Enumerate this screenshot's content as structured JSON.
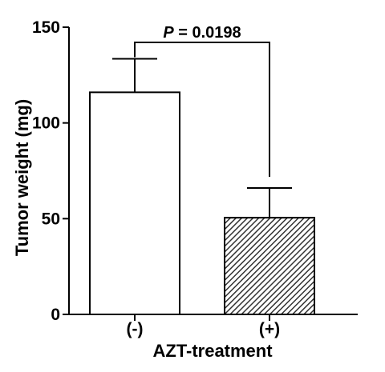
{
  "chart_data": {
    "type": "bar",
    "categories": [
      "(-)",
      "(+)"
    ],
    "values": [
      116,
      50.5
    ],
    "error_upper": [
      133.5,
      66
    ],
    "bar_fills": [
      "#ffffff",
      "hatched"
    ],
    "xlabel": "AZT-treatment",
    "ylabel": "Tumor weight (mg)",
    "ylim": [
      0,
      150
    ],
    "yticks": [
      0,
      50,
      100,
      150
    ],
    "ytick_labels": [
      "0",
      "50",
      "100",
      "150"
    ],
    "grid": false,
    "annotation": {
      "p_symbol": "P",
      "p_text": " = 0.0198",
      "between": [
        "(-)",
        "(+)"
      ]
    }
  }
}
